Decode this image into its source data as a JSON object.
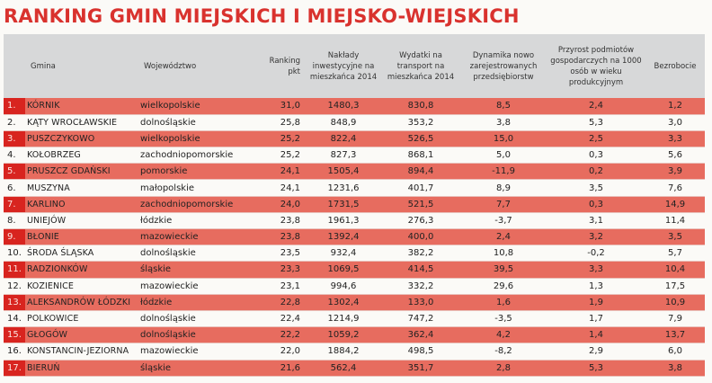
{
  "title": "RANKING GMIN MIEJSKICH I MIEJSKO-WIEJSKICH",
  "headers": {
    "gmina": "Gmina",
    "wojewodztwo": "Województwo",
    "ranking": "Ranking pkt",
    "naklady": "Nakłady inwestycyjne na mieszkańca 2014",
    "wydatki": "Wydatki na transport na mieszkańca 2014",
    "dynamika": "Dynamika nowo zarejestrowanych przedsiębiorstw",
    "przyrost": "Przyrost podmiotów gospodarczych na 1000 osób w wieku produkcyjnym",
    "bezrobocie": "Bezrobocie"
  },
  "rows": [
    {
      "lp": "1.",
      "gmina": "KÓRNIK",
      "woj": "wielkopolskie",
      "ranking": "31,0",
      "naklady": "1480,3",
      "wydatki": "830,8",
      "dynamika": "8,5",
      "przyrost": "2,4",
      "bezrobocie": "1,2"
    },
    {
      "lp": "2.",
      "gmina": "KĄTY WROCŁAWSKIE",
      "woj": "dolnośląskie",
      "ranking": "25,8",
      "naklady": "848,9",
      "wydatki": "353,2",
      "dynamika": "3,8",
      "przyrost": "5,3",
      "bezrobocie": "3,0"
    },
    {
      "lp": "3.",
      "gmina": "PUSZCZYKOWO",
      "woj": "wielkopolskie",
      "ranking": "25,2",
      "naklady": "822,4",
      "wydatki": "526,5",
      "dynamika": "15,0",
      "przyrost": "2,5",
      "bezrobocie": "3,3"
    },
    {
      "lp": "4.",
      "gmina": "KOŁOBRZEG",
      "woj": "zachodniopomorskie",
      "ranking": "25,2",
      "naklady": "827,3",
      "wydatki": "868,1",
      "dynamika": "5,0",
      "przyrost": "0,3",
      "bezrobocie": "5,6"
    },
    {
      "lp": "5.",
      "gmina": "PRUSZCZ GDAŃSKI",
      "woj": "pomorskie",
      "ranking": "24,1",
      "naklady": "1505,4",
      "wydatki": "894,4",
      "dynamika": "-11,9",
      "przyrost": "0,2",
      "bezrobocie": "3,9"
    },
    {
      "lp": "6.",
      "gmina": "MUSZYNA",
      "woj": "małopolskie",
      "ranking": "24,1",
      "naklady": "1231,6",
      "wydatki": "401,7",
      "dynamika": "8,9",
      "przyrost": "3,5",
      "bezrobocie": "7,6"
    },
    {
      "lp": "7.",
      "gmina": "KARLINO",
      "woj": "zachodniopomorskie",
      "ranking": "24,0",
      "naklady": "1731,5",
      "wydatki": "521,5",
      "dynamika": "7,7",
      "przyrost": "0,3",
      "bezrobocie": "14,9"
    },
    {
      "lp": "8.",
      "gmina": "UNIEJÓW",
      "woj": "łódzkie",
      "ranking": "23,8",
      "naklady": "1961,3",
      "wydatki": "276,3",
      "dynamika": "-3,7",
      "przyrost": "3,1",
      "bezrobocie": "11,4"
    },
    {
      "lp": "9.",
      "gmina": "BŁONIE",
      "woj": "mazowieckie",
      "ranking": "23,8",
      "naklady": "1392,4",
      "wydatki": "400,0",
      "dynamika": "2,4",
      "przyrost": "3,2",
      "bezrobocie": "3,5"
    },
    {
      "lp": "10.",
      "gmina": "ŚRODA ŚLĄSKA",
      "woj": "dolnośląskie",
      "ranking": "23,5",
      "naklady": "932,4",
      "wydatki": "382,2",
      "dynamika": "10,8",
      "przyrost": "-0,2",
      "bezrobocie": "5,7"
    },
    {
      "lp": "11.",
      "gmina": "RADZIONKÓW",
      "woj": "śląskie",
      "ranking": "23,3",
      "naklady": "1069,5",
      "wydatki": "414,5",
      "dynamika": "39,5",
      "przyrost": "3,3",
      "bezrobocie": "10,4"
    },
    {
      "lp": "12.",
      "gmina": "KOZIENICE",
      "woj": "mazowieckie",
      "ranking": "23,1",
      "naklady": "994,6",
      "wydatki": "332,2",
      "dynamika": "29,6",
      "przyrost": "1,3",
      "bezrobocie": "17,5"
    },
    {
      "lp": "13.",
      "gmina": "ALEKSANDRÓW ŁÓDZKI",
      "woj": "łódzkie",
      "ranking": "22,8",
      "naklady": "1302,4",
      "wydatki": "133,0",
      "dynamika": "1,6",
      "przyrost": "1,9",
      "bezrobocie": "10,9"
    },
    {
      "lp": "14.",
      "gmina": "POLKOWICE",
      "woj": "dolnośląskie",
      "ranking": "22,4",
      "naklady": "1214,9",
      "wydatki": "747,2",
      "dynamika": "-3,5",
      "przyrost": "1,7",
      "bezrobocie": "7,9"
    },
    {
      "lp": "15.",
      "gmina": "GŁOGÓW",
      "woj": "dolnośląskie",
      "ranking": "22,2",
      "naklady": "1059,2",
      "wydatki": "362,4",
      "dynamika": "4,2",
      "przyrost": "1,4",
      "bezrobocie": "13,7"
    },
    {
      "lp": "16.",
      "gmina": "KONSTANCIN-JEZIORNA",
      "woj": "mazowieckie",
      "ranking": "22,0",
      "naklady": "1884,2",
      "wydatki": "498,5",
      "dynamika": "-8,2",
      "przyrost": "2,9",
      "bezrobocie": "6,0"
    },
    {
      "lp": "17.",
      "gmina": "BIERUŃ",
      "woj": "śląskie",
      "ranking": "21,6",
      "naklady": "562,4",
      "wydatki": "351,7",
      "dynamika": "2,8",
      "przyrost": "5,3",
      "bezrobocie": "3,8"
    }
  ],
  "colors": {
    "title": "#d9322e",
    "row_red": "#e76c5f",
    "lp_red": "#d8241f",
    "header_bg": "#d7d8d9"
  }
}
